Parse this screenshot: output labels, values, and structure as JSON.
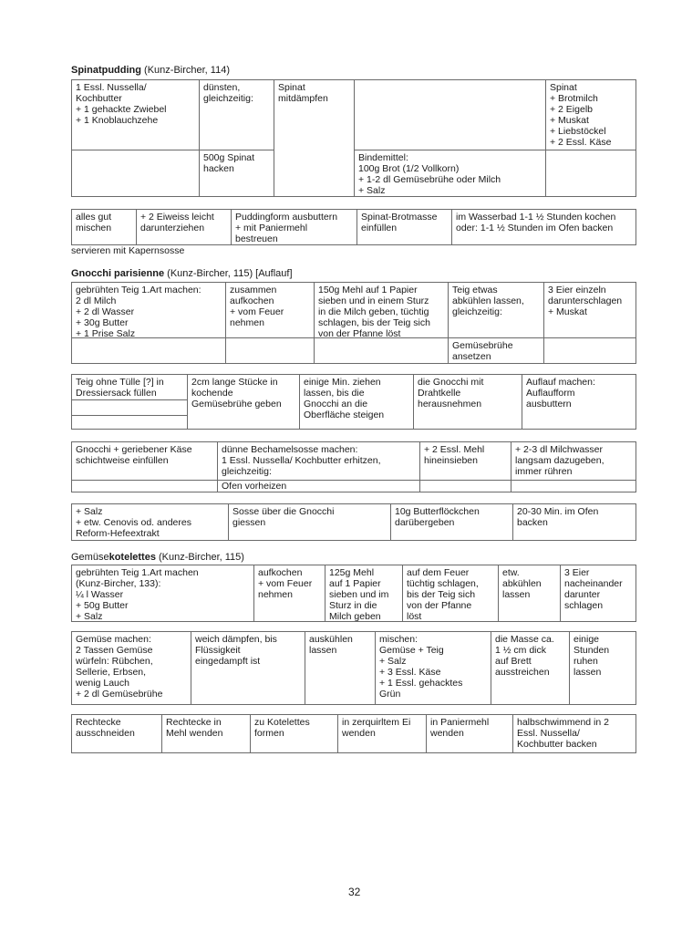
{
  "recipes": [
    {
      "name": "Spinatpudding",
      "source": "(Kunz-Bircher, 114)",
      "table1": [
        "1 Essl. Nussella/\nKochbutter\n+ 1 gehackte Zwiebel\n+ 1 Knoblauchzehe",
        "dünsten,\ngleichzeitig:",
        "Spinat\nmitdämpfen",
        "",
        "Spinat\n+ Brotmilch\n+ 2 Eigelb\n+ Muskat\n+ Liebstöckel\n+ 2 Essl. Käse",
        "",
        "500g Spinat\nhacken",
        "Bindemittel:\n100g Brot (1/2 Vollkorn)\n+ 1-2 dl Gemüsebrühe oder Milch\n+ Salz",
        ""
      ],
      "table2": [
        "alles gut\nmischen",
        "+ 2 Eiweiss leicht\ndarunterziehen",
        "Puddingform ausbuttern\n+ mit Paniermehl\nbestreuen",
        "Spinat-Brotmasse\neinfüllen",
        "im Wasserbad 1-1 ½ Stunden kochen\noder: 1-1 ½ Stunden im Ofen backen"
      ],
      "note": "servieren mit Kapernsosse"
    },
    {
      "name": "Gnocchi parisienne",
      "source": "(Kunz-Bircher, 115) [Auflauf]",
      "table1": [
        "gebrühten Teig 1.Art machen:\n2 dl Milch\n+ 2 dl Wasser\n+ 30g Butter\n+ 1 Prise Salz",
        "zusammen\naufkochen\n+ vom Feuer\nnehmen",
        "150g Mehl auf 1 Papier\nsieben und in einem Sturz\nin die Milch geben, tüchtig\nschlagen, bis der Teig sich\nvon der Pfanne löst",
        "Teig etwas\nabkühlen lassen,\ngleichzeitig:",
        "3 Eier einzeln\ndarunterschlagen\n+ Muskat",
        "Gemüsebrühe\nansetzen"
      ],
      "table2": [
        "Teig ohne Tülle [?] in\nDressiersack füllen",
        "2cm lange Stücke in\nkochende\nGemüsebrühe geben",
        "einige Min. ziehen\nlassen, bis die\nGnocchi an die\nOberfläche steigen",
        "die Gnocchi mit\nDrahtkelle\nherausnehmen",
        "Auflauf machen:\nAuflaufform\nausbuttern"
      ],
      "table3": [
        "Gnocchi + geriebener Käse\nschichtweise einfüllen",
        "dünne Bechamelsosse machen:\n1 Essl. Nussella/ Kochbutter erhitzen,\ngleichzeitig:",
        "+ 2 Essl. Mehl\nhineinsieben",
        "+ 2-3 dl Milchwasser\nlangsam dazugeben,\nimmer rühren",
        "Ofen vorheizen"
      ],
      "table4": [
        "+ Salz\n+ etw. Cenovis od. anderes\nReform-Hefeextrakt",
        "Sosse über die Gnocchi\ngiessen",
        "10g Butterflöckchen\ndarübergeben",
        "20-30 Min. im Ofen\nbacken"
      ]
    },
    {
      "name_plain": "Gemüse",
      "name": "kotelettes",
      "source": "(Kunz-Bircher, 115)",
      "table1": [
        "gebrühten Teig 1.Art machen\n(Kunz-Bircher, 133):\n¼ l Wasser\n+ 50g Butter\n+ Salz",
        "aufkochen\n+ vom Feuer\nnehmen",
        "125g Mehl\nauf 1 Papier\nsieben und im\nSturz in die\nMilch geben",
        "auf dem Feuer\ntüchtig schlagen,\nbis der Teig sich\nvon der Pfanne\nlöst",
        "etw.\nabkühlen\nlassen",
        "3 Eier\nnacheinander\ndarunter\nschlagen"
      ],
      "table2": [
        "Gemüse machen:\n2 Tassen Gemüse\nwürfeln: Rübchen,\nSellerie, Erbsen,\nwenig Lauch\n+ 2 dl Gemüsebrühe",
        "weich dämpfen, bis\nFlüssigkeit\neingedampft ist",
        "auskühlen\nlassen",
        "mischen:\nGemüse + Teig\n+ Salz\n+ 3 Essl. Käse\n+ 1 Essl. gehacktes\nGrün",
        "die Masse ca.\n1 ½ cm dick\nauf Brett\nausstreichen",
        "einige\nStunden\nruhen\nlassen"
      ],
      "table3": [
        "Rechtecke\nausschneiden",
        "Rechtecke in\nMehl wenden",
        "zu Kotelettes\nformen",
        "in zerquirltem Ei\nwenden",
        "in Paniermehl\nwenden",
        "halbschwimmend in 2\nEssl. Nussella/\nKochbutter backen"
      ]
    }
  ],
  "page_number": "32"
}
